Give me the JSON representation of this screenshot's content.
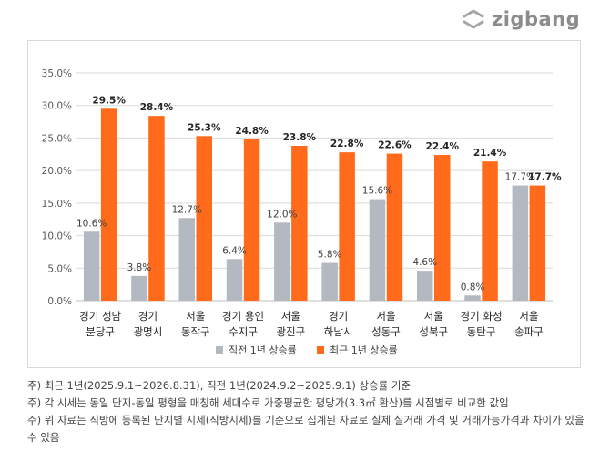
{
  "brand": {
    "name": "zigbang"
  },
  "colors": {
    "prev": "#b4b8c1",
    "recent": "#ff6b1a",
    "axis": "#595959",
    "grid": "#d9d9d9"
  },
  "chart_data": {
    "type": "bar",
    "title": "",
    "ylim": [
      0,
      35
    ],
    "yticks": [
      "0.0%",
      "5.0%",
      "10.0%",
      "15.0%",
      "20.0%",
      "25.0%",
      "30.0%",
      "35.0%"
    ],
    "grid": true,
    "legend_position": "bottom",
    "categories": [
      [
        "경기 성남",
        "분당구"
      ],
      [
        "경기",
        "광명시"
      ],
      [
        "서울",
        "동작구"
      ],
      [
        "경기 용인",
        "수지구"
      ],
      [
        "서울",
        "광진구"
      ],
      [
        "경기",
        "하남시"
      ],
      [
        "서울",
        "성동구"
      ],
      [
        "서울",
        "성북구"
      ],
      [
        "경기 화성",
        "동탄구"
      ],
      [
        "서울",
        "송파구"
      ]
    ],
    "series": [
      {
        "name": "직전 1년 상승률",
        "values": [
          10.6,
          3.8,
          12.7,
          6.4,
          12.0,
          5.8,
          15.6,
          4.6,
          0.8,
          17.7
        ],
        "labels": [
          "10.6%",
          "3.8%",
          "12.7%",
          "6.4%",
          "12.0%",
          "5.8%",
          "15.6%",
          "4.6%",
          "0.8%",
          "17.7%"
        ]
      },
      {
        "name": "최근 1년 상승률",
        "values": [
          29.5,
          28.4,
          25.3,
          24.8,
          23.8,
          22.8,
          22.6,
          22.4,
          21.4,
          17.7
        ],
        "labels": [
          "29.5%",
          "28.4%",
          "25.3%",
          "24.8%",
          "23.8%",
          "22.8%",
          "22.6%",
          "22.4%",
          "21.4%",
          "17.7%"
        ]
      }
    ]
  },
  "notes": [
    "주) 최근 1년(2025.9.1~2026.8.31), 직전 1년(2024.9.2~2025.9.1) 상승률 기준",
    "주) 각 시세는 동일 단지-동일 평형을 매칭해 세대수로 가중평균한 평당가(3.3㎡ 환산)를 시점별로 비교한 값임",
    "주) 위 자료는 직방에 등록된 단지별 시세(직방시세)를 기준으로 집계된 자료로 실제 실거래 가격 및 거래가능가격과 차이가 있을 수 있음"
  ]
}
